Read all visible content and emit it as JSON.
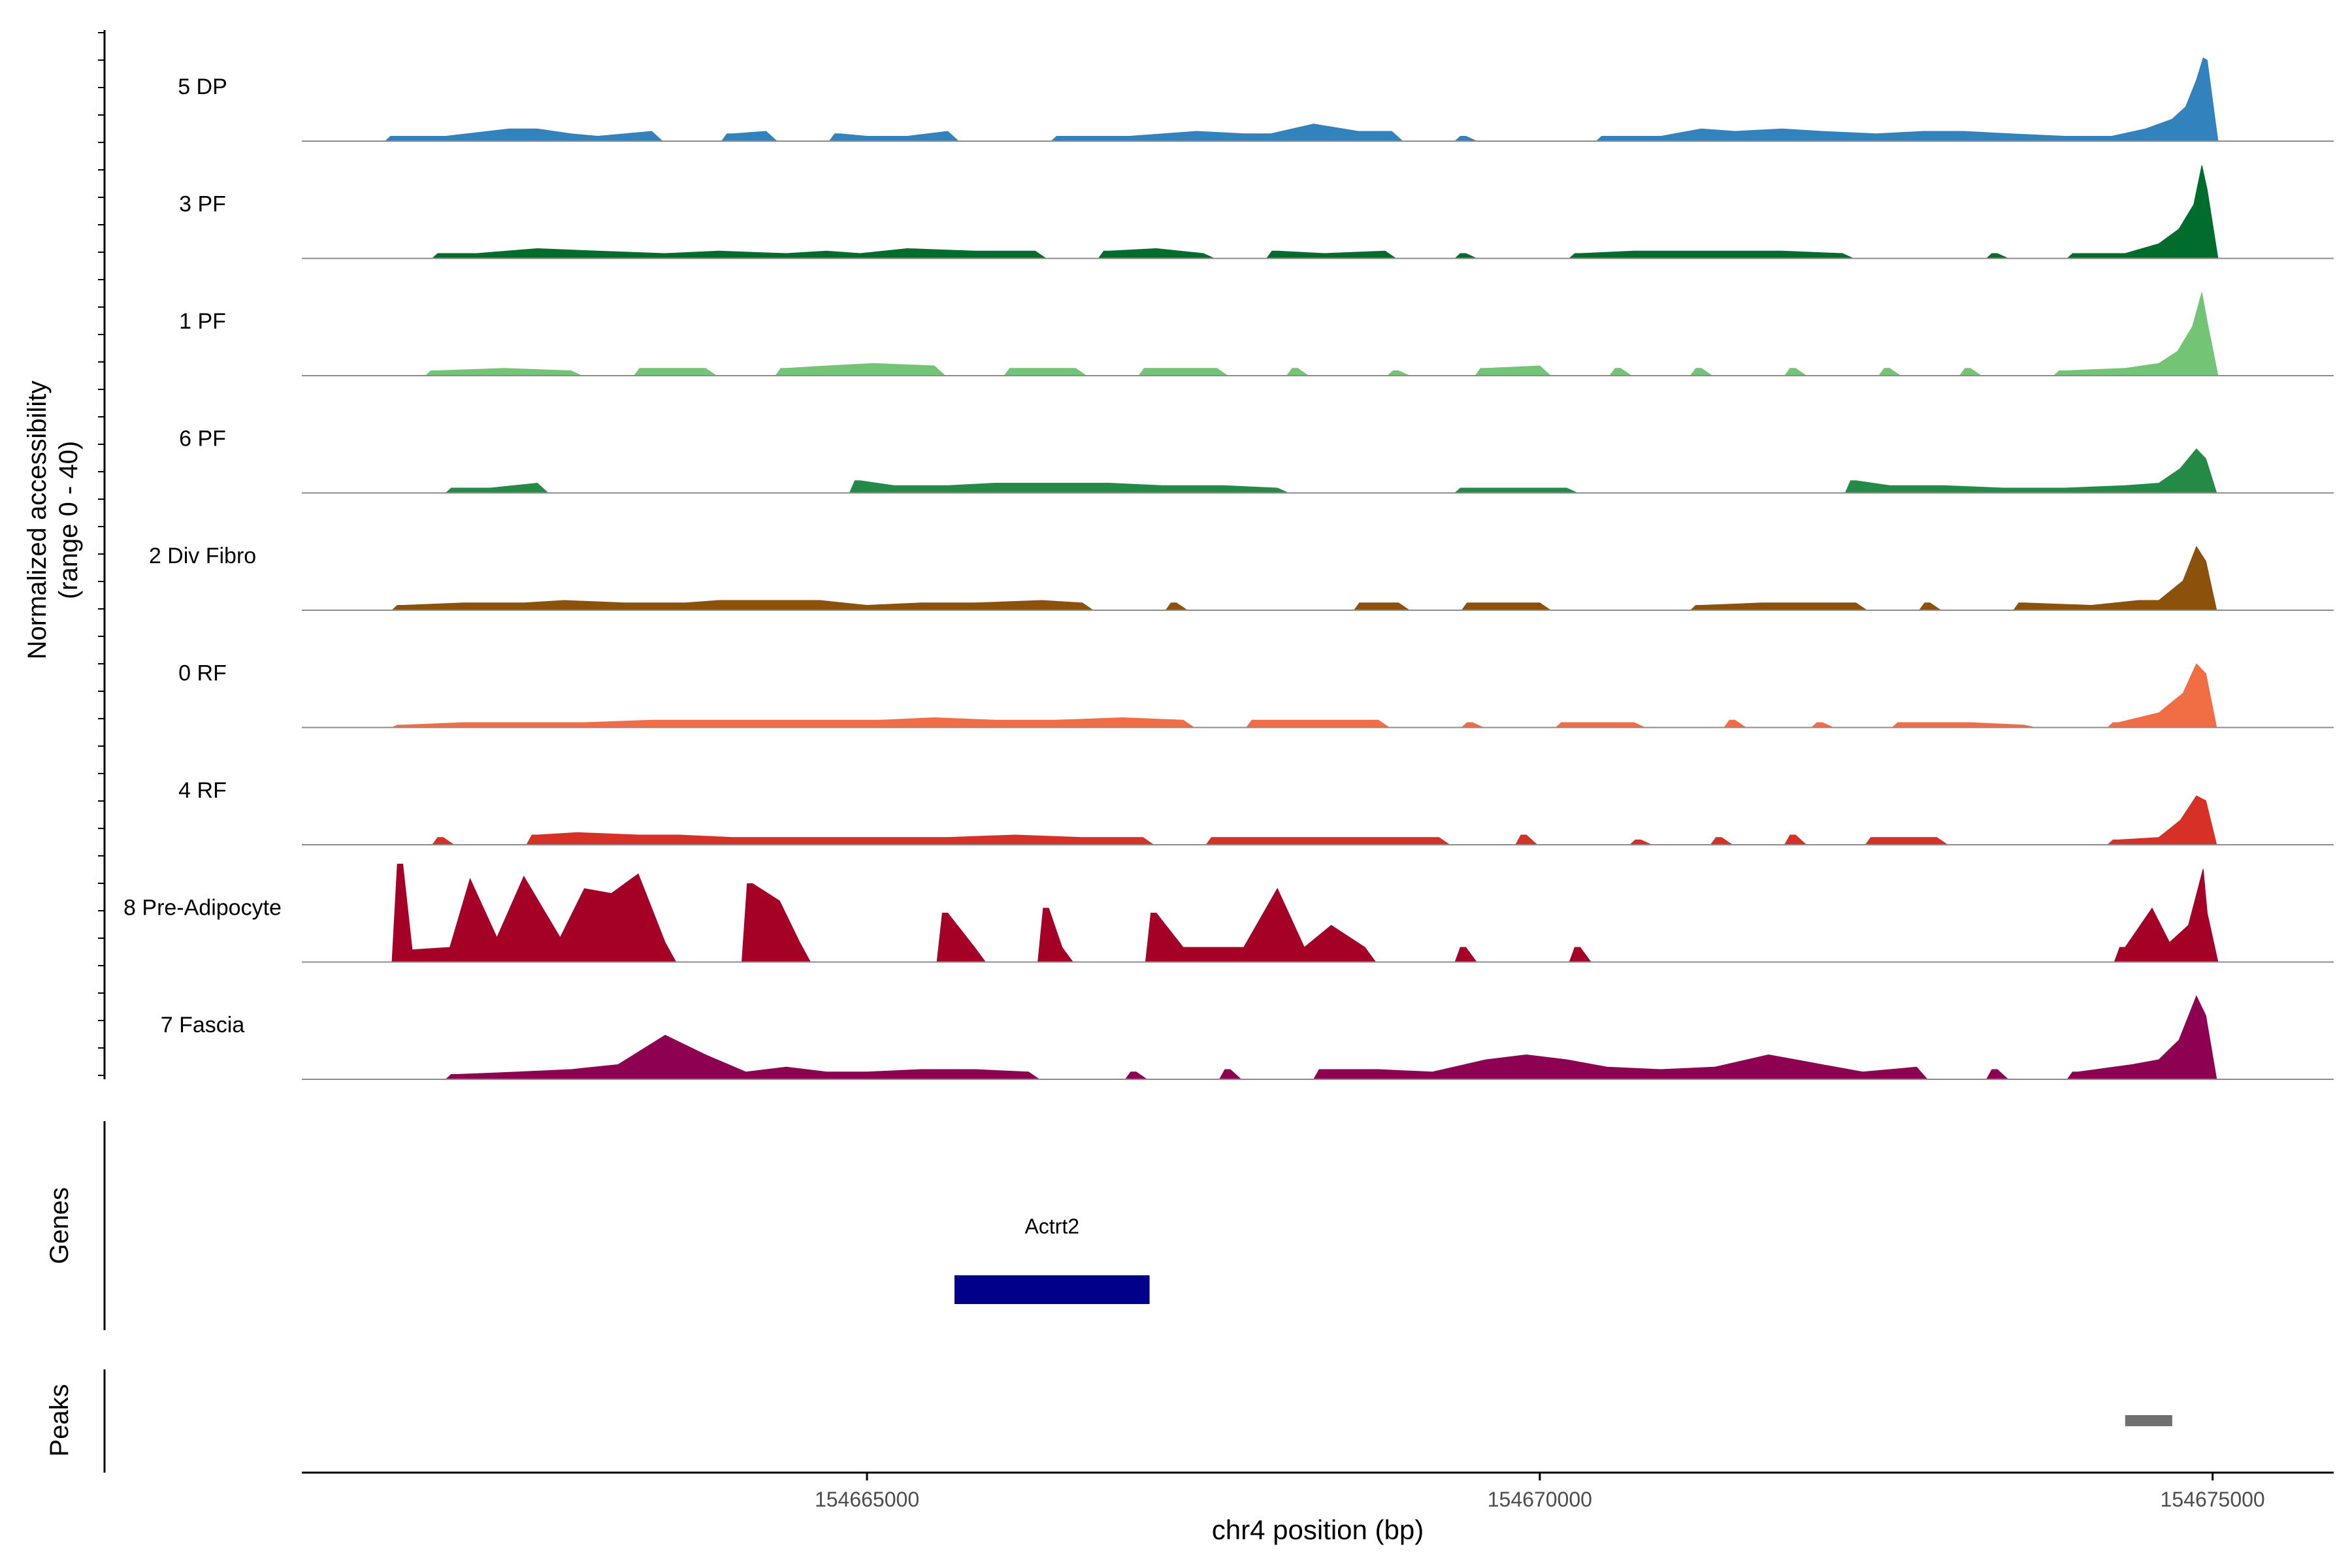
{
  "chart_data": {
    "type": "area",
    "region": {
      "chromosome": "chr4",
      "start": 154660800,
      "end": 154675900
    },
    "xlabel": "chr4 position (bp)",
    "x_ticks": [
      {
        "value": 154665000,
        "label": "154665000"
      },
      {
        "value": 154670000,
        "label": "154670000"
      },
      {
        "value": 154675000,
        "label": "154675000"
      }
    ],
    "ylabel_line1": "Normalized accessibility",
    "ylabel_line2": "(range 0 - 40)",
    "ylim": [
      0,
      40
    ],
    "tracks": [
      {
        "name": "5 DP",
        "color": "#3182BD",
        "values": [
          [
            154661500,
            2
          ],
          [
            154661870,
            2
          ],
          [
            154662340,
            5
          ],
          [
            154662550,
            5
          ],
          [
            154662800,
            3
          ],
          [
            154663000,
            2
          ],
          [
            154663400,
            4
          ],
          [
            154664000,
            3
          ],
          [
            154664250,
            4
          ],
          [
            154664800,
            3
          ],
          [
            154665000,
            2
          ],
          [
            154665300,
            2
          ],
          [
            154665600,
            4
          ],
          [
            154666450,
            2
          ],
          [
            154666950,
            2
          ],
          [
            154667200,
            3
          ],
          [
            154667450,
            4
          ],
          [
            154667820,
            3
          ],
          [
            154668000,
            3
          ],
          [
            154668320,
            7
          ],
          [
            154668650,
            4
          ],
          [
            154668900,
            4
          ],
          [
            154669450,
            2
          ],
          [
            154670500,
            2
          ],
          [
            154670900,
            2
          ],
          [
            154671200,
            5
          ],
          [
            154671450,
            4
          ],
          [
            154671800,
            5
          ],
          [
            154672100,
            4
          ],
          [
            154672500,
            3
          ],
          [
            154672850,
            4
          ],
          [
            154673150,
            4
          ],
          [
            154673500,
            3
          ],
          [
            154673900,
            2
          ],
          [
            154674250,
            2
          ],
          [
            154674500,
            5
          ],
          [
            154674700,
            9
          ],
          [
            154674800,
            14
          ],
          [
            154674880,
            25
          ],
          [
            154674930,
            34
          ],
          [
            154674960,
            33
          ]
        ]
      },
      {
        "name": "3 PF",
        "color": "#006D2C",
        "values": [
          [
            154661850,
            2
          ],
          [
            154662100,
            2
          ],
          [
            154662550,
            4
          ],
          [
            154663000,
            3
          ],
          [
            154663500,
            2
          ],
          [
            154663900,
            3
          ],
          [
            154664400,
            2
          ],
          [
            154664700,
            3
          ],
          [
            154664950,
            2
          ],
          [
            154665300,
            4
          ],
          [
            154665800,
            3
          ],
          [
            154666250,
            3
          ],
          [
            154666800,
            3
          ],
          [
            154667150,
            4
          ],
          [
            154667500,
            2
          ],
          [
            154668050,
            3
          ],
          [
            154668400,
            2
          ],
          [
            154668850,
            3
          ],
          [
            154669450,
            2
          ],
          [
            154670300,
            2
          ],
          [
            154670700,
            3
          ],
          [
            154671100,
            3
          ],
          [
            154671450,
            3
          ],
          [
            154671800,
            3
          ],
          [
            154672250,
            2
          ],
          [
            154673400,
            2
          ],
          [
            154674000,
            2
          ],
          [
            154674350,
            2
          ],
          [
            154674600,
            6
          ],
          [
            154674750,
            12
          ],
          [
            154674860,
            22
          ],
          [
            154674920,
            38
          ],
          [
            154674960,
            28
          ]
        ]
      },
      {
        "name": "1 PF",
        "color": "#74C476",
        "values": [
          [
            154661800,
            2
          ],
          [
            154662300,
            3
          ],
          [
            154662800,
            2
          ],
          [
            154663350,
            3
          ],
          [
            154663800,
            3
          ],
          [
            154664400,
            3
          ],
          [
            154664700,
            4
          ],
          [
            154665050,
            5
          ],
          [
            154665500,
            4
          ],
          [
            154666100,
            3
          ],
          [
            154666550,
            3
          ],
          [
            154667100,
            3
          ],
          [
            154667600,
            3
          ],
          [
            154668200,
            3
          ],
          [
            154668950,
            2
          ],
          [
            154669600,
            3
          ],
          [
            154670000,
            4
          ],
          [
            154670600,
            3
          ],
          [
            154671200,
            3
          ],
          [
            154671900,
            3
          ],
          [
            154672600,
            3
          ],
          [
            154673200,
            3
          ],
          [
            154673900,
            2
          ],
          [
            154674350,
            3
          ],
          [
            154674600,
            5
          ],
          [
            154674740,
            10
          ],
          [
            154674850,
            20
          ],
          [
            154674920,
            34
          ],
          [
            154674960,
            22
          ]
        ]
      },
      {
        "name": "6 PF",
        "color": "#238B45",
        "values": [
          [
            154661950,
            2
          ],
          [
            154662200,
            2
          ],
          [
            154662550,
            4
          ],
          [
            154664950,
            5
          ],
          [
            154665200,
            3
          ],
          [
            154665600,
            3
          ],
          [
            154665950,
            4
          ],
          [
            154666450,
            4
          ],
          [
            154666800,
            4
          ],
          [
            154667200,
            3
          ],
          [
            154667650,
            3
          ],
          [
            154668050,
            2
          ],
          [
            154669450,
            2
          ],
          [
            154669850,
            2
          ],
          [
            154670200,
            2
          ],
          [
            154672350,
            5
          ],
          [
            154672600,
            3
          ],
          [
            154673000,
            3
          ],
          [
            154673450,
            2
          ],
          [
            154673900,
            2
          ],
          [
            154674350,
            3
          ],
          [
            154674600,
            4
          ],
          [
            154674760,
            10
          ],
          [
            154674880,
            18
          ],
          [
            154674950,
            14
          ]
        ]
      },
      {
        "name": "2 Div Fibro",
        "color": "#8C510A",
        "values": [
          [
            154661550,
            2
          ],
          [
            154662000,
            3
          ],
          [
            154662450,
            3
          ],
          [
            154662750,
            4
          ],
          [
            154663200,
            3
          ],
          [
            154663650,
            3
          ],
          [
            154663900,
            4
          ],
          [
            154664400,
            4
          ],
          [
            154664650,
            4
          ],
          [
            154665000,
            2
          ],
          [
            154665400,
            3
          ],
          [
            154665800,
            3
          ],
          [
            154666300,
            4
          ],
          [
            154666600,
            3
          ],
          [
            154667300,
            3
          ],
          [
            154668700,
            3
          ],
          [
            154668950,
            3
          ],
          [
            154669500,
            3
          ],
          [
            154670000,
            3
          ],
          [
            154671200,
            2
          ],
          [
            154671650,
            3
          ],
          [
            154671950,
            3
          ],
          [
            154672350,
            3
          ],
          [
            154672900,
            3
          ],
          [
            154673600,
            3
          ],
          [
            154674100,
            2
          ],
          [
            154674450,
            4
          ],
          [
            154674600,
            4
          ],
          [
            154674780,
            12
          ],
          [
            154674880,
            26
          ],
          [
            154674950,
            20
          ]
        ]
      },
      {
        "name": "0 RF",
        "color": "#F16D43",
        "values": [
          [
            154661550,
            1
          ],
          [
            154662000,
            2
          ],
          [
            154662400,
            2
          ],
          [
            154662900,
            2
          ],
          [
            154663400,
            3
          ],
          [
            154663900,
            3
          ],
          [
            154664200,
            3
          ],
          [
            154664700,
            3
          ],
          [
            154665100,
            3
          ],
          [
            154665500,
            4
          ],
          [
            154665950,
            3
          ],
          [
            154666400,
            3
          ],
          [
            154666900,
            4
          ],
          [
            154667350,
            3
          ],
          [
            154667900,
            3
          ],
          [
            154668350,
            3
          ],
          [
            154668800,
            3
          ],
          [
            154669500,
            2
          ],
          [
            154670200,
            2
          ],
          [
            154670700,
            2
          ],
          [
            154671450,
            3
          ],
          [
            154672100,
            2
          ],
          [
            154672700,
            2
          ],
          [
            154673200,
            2
          ],
          [
            154673600,
            1
          ],
          [
            154674300,
            2
          ],
          [
            154674600,
            6
          ],
          [
            154674780,
            14
          ],
          [
            154674880,
            26
          ],
          [
            154674950,
            22
          ]
        ]
      },
      {
        "name": "4 RF",
        "color": "#D73027",
        "values": [
          [
            154661850,
            3
          ],
          [
            154662550,
            4
          ],
          [
            154662850,
            5
          ],
          [
            154663300,
            4
          ],
          [
            154663600,
            4
          ],
          [
            154664000,
            3
          ],
          [
            154664500,
            3
          ],
          [
            154664800,
            3
          ],
          [
            154665250,
            3
          ],
          [
            154665600,
            3
          ],
          [
            154666100,
            4
          ],
          [
            154666600,
            3
          ],
          [
            154667050,
            3
          ],
          [
            154667600,
            3
          ],
          [
            154668000,
            3
          ],
          [
            154668350,
            3
          ],
          [
            154668800,
            3
          ],
          [
            154669250,
            3
          ],
          [
            154669900,
            4
          ],
          [
            154670750,
            2
          ],
          [
            154671350,
            3
          ],
          [
            154671900,
            4
          ],
          [
            154672500,
            3
          ],
          [
            154672950,
            3
          ],
          [
            154674300,
            2
          ],
          [
            154674600,
            3
          ],
          [
            154674760,
            10
          ],
          [
            154674880,
            20
          ],
          [
            154674950,
            18
          ]
        ]
      },
      {
        "name": "8 Pre-Adipocyte",
        "color": "#A50026",
        "values": [
          [
            154661550,
            40
          ],
          [
            154661620,
            5
          ],
          [
            154661900,
            6
          ],
          [
            154662050,
            34
          ],
          [
            154662250,
            10
          ],
          [
            154662450,
            35
          ],
          [
            154662720,
            10
          ],
          [
            154662900,
            30
          ],
          [
            154663100,
            28
          ],
          [
            154663300,
            36
          ],
          [
            154663500,
            8
          ],
          [
            154664150,
            32
          ],
          [
            154664350,
            25
          ],
          [
            154664500,
            8
          ],
          [
            154665600,
            20
          ],
          [
            154665800,
            6
          ],
          [
            154666350,
            22
          ],
          [
            154666450,
            6
          ],
          [
            154667150,
            20
          ],
          [
            154667350,
            6
          ],
          [
            154667800,
            6
          ],
          [
            154668050,
            30
          ],
          [
            154668250,
            6
          ],
          [
            154668450,
            15
          ],
          [
            154668700,
            6
          ],
          [
            154669450,
            6
          ],
          [
            154670300,
            6
          ],
          [
            154674350,
            6
          ],
          [
            154674550,
            22
          ],
          [
            154674680,
            8
          ],
          [
            154674820,
            15
          ],
          [
            154674930,
            38
          ],
          [
            154674960,
            20
          ]
        ]
      },
      {
        "name": "7 Fascia",
        "color": "#8E0152",
        "values": [
          [
            154661950,
            2
          ],
          [
            154662400,
            3
          ],
          [
            154662800,
            4
          ],
          [
            154663150,
            6
          ],
          [
            154663500,
            18
          ],
          [
            154663800,
            10
          ],
          [
            154664100,
            3
          ],
          [
            154664400,
            5
          ],
          [
            154664700,
            3
          ],
          [
            154665000,
            3
          ],
          [
            154665400,
            4
          ],
          [
            154665800,
            4
          ],
          [
            154666200,
            3
          ],
          [
            154667000,
            3
          ],
          [
            154667700,
            4
          ],
          [
            154668400,
            4
          ],
          [
            154668800,
            4
          ],
          [
            154669200,
            3
          ],
          [
            154669600,
            8
          ],
          [
            154669900,
            10
          ],
          [
            154670200,
            8
          ],
          [
            154670500,
            5
          ],
          [
            154670900,
            4
          ],
          [
            154671300,
            5
          ],
          [
            154671700,
            10
          ],
          [
            154672000,
            7
          ],
          [
            154672400,
            3
          ],
          [
            154672800,
            5
          ],
          [
            154673400,
            4
          ],
          [
            154674000,
            3
          ],
          [
            154674400,
            6
          ],
          [
            154674600,
            8
          ],
          [
            154674750,
            16
          ],
          [
            154674880,
            34
          ],
          [
            154674950,
            26
          ]
        ]
      }
    ],
    "genes": [
      {
        "name": "Actrt2",
        "start": 154665650,
        "end": 154667100,
        "color": "#00008B"
      }
    ],
    "peaks": [
      {
        "start": 154674350,
        "end": 154674700,
        "color": "#707070"
      }
    ],
    "panel_labels": {
      "genes": "Genes",
      "peaks": "Peaks"
    },
    "grid": false,
    "legend": "none"
  }
}
